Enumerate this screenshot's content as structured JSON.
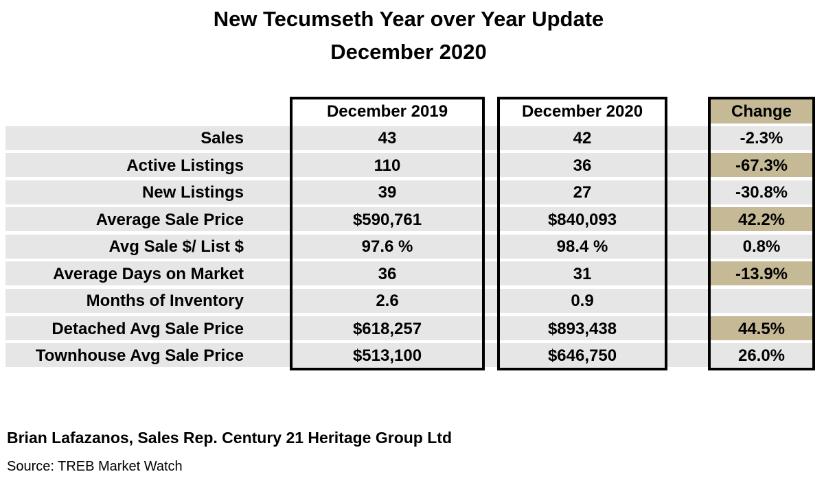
{
  "title_line1": "New Tecumseth Year over Year Update",
  "title_line2": "December 2020",
  "columns": {
    "col1": "December 2019",
    "col2": "December 2020",
    "col3": "Change"
  },
  "rows": [
    {
      "label": "Sales",
      "v2019": "43",
      "v2020": "42",
      "change": "-2.3%",
      "highlight": false
    },
    {
      "label": "Active Listings",
      "v2019": "110",
      "v2020": "36",
      "change": "-67.3%",
      "highlight": true
    },
    {
      "label": "New Listings",
      "v2019": "39",
      "v2020": "27",
      "change": "-30.8%",
      "highlight": false
    },
    {
      "label": "Average Sale Price",
      "v2019": "$590,761",
      "v2020": "$840,093",
      "change": "42.2%",
      "highlight": true
    },
    {
      "label": "Avg Sale $/ List $",
      "v2019": "97.6 %",
      "v2020": "98.4 %",
      "change": "0.8%",
      "highlight": false
    },
    {
      "label": "Average Days on Market",
      "v2019": "36",
      "v2020": "31",
      "change": "-13.9%",
      "highlight": true
    },
    {
      "label": "Months of Inventory",
      "v2019": "2.6",
      "v2020": "0.9",
      "change": "",
      "highlight": false
    },
    {
      "label": "Detached Avg Sale Price",
      "v2019": "$618,257",
      "v2020": "$893,438",
      "change": "44.5%",
      "highlight": true
    },
    {
      "label": "Townhouse Avg Sale Price",
      "v2019": "$513,100",
      "v2020": "$646,750",
      "change": "26.0%",
      "highlight": false
    }
  ],
  "footer": {
    "author": "Brian Lafazanos, Sales Rep. Century 21 Heritage Group Ltd",
    "source": "Source: TREB Market Watch"
  },
  "colors": {
    "band_gray": "#e7e6e6",
    "highlight_tan": "#c5b996"
  }
}
